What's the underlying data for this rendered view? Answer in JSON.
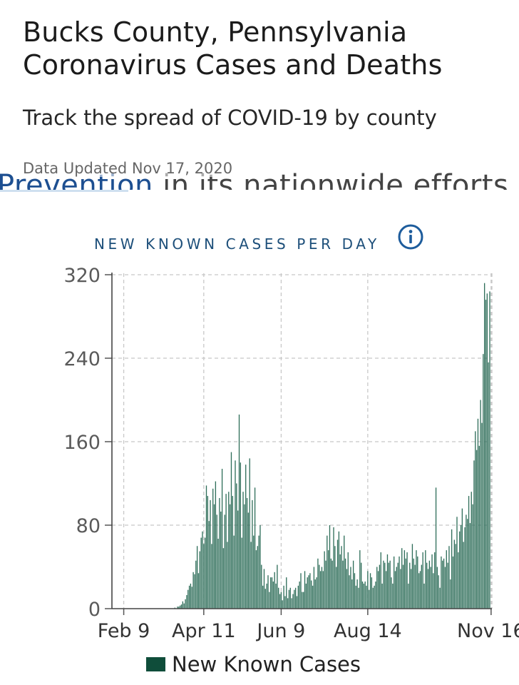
{
  "header": {
    "title_line1": "Bucks County, Pennsylvania",
    "title_line2": "Coronavirus Cases and Deaths",
    "subtitle": "Track the spread of COVID-19 by county",
    "updated": "Data Updated Nov 17, 2020",
    "peek_link": "Prevention",
    "peek_rest": " in its nationwide efforts."
  },
  "colors": {
    "bar": "#2f6e5a",
    "legend": "#0f4d3a",
    "heading": "#1d4f7a",
    "info": "#1d5c9c"
  },
  "icons": {
    "info": "info-circle-icon"
  },
  "chart_data": {
    "type": "bar",
    "title": "NEW KNOWN CASES PER DAY",
    "series_name": "New Known Cases",
    "x_tick_labels": [
      "Feb 9",
      "Apr 11",
      "Jun 9",
      "Aug 14",
      "Nov 16"
    ],
    "x_tick_days": [
      9,
      70,
      129,
      195,
      289
    ],
    "y_ticks": [
      0,
      80,
      160,
      240,
      320
    ],
    "ylim": [
      0,
      320
    ],
    "x_start": "2020-02-01",
    "x_end": "2020-11-17",
    "values": [
      0,
      0,
      0,
      0,
      0,
      0,
      0,
      0,
      0,
      0,
      0,
      0,
      0,
      0,
      0,
      0,
      0,
      0,
      0,
      0,
      0,
      0,
      0,
      0,
      0,
      0,
      0,
      0,
      0,
      0,
      0,
      0,
      0,
      0,
      0,
      0,
      0,
      0,
      0,
      0,
      0,
      0,
      0,
      0,
      0,
      0,
      0,
      0,
      1,
      0,
      2,
      2,
      3,
      4,
      7,
      5,
      9,
      13,
      18,
      22,
      24,
      21,
      35,
      33,
      46,
      60,
      34,
      55,
      68,
      74,
      62,
      68,
      118,
      108,
      84,
      104,
      62,
      115,
      100,
      122,
      90,
      67,
      106,
      93,
      134,
      58,
      90,
      110,
      64,
      112,
      100,
      150,
      108,
      70,
      142,
      120,
      94,
      186,
      140,
      68,
      112,
      100,
      138,
      106,
      92,
      144,
      64,
      104,
      70,
      116,
      56,
      60,
      70,
      80,
      42,
      22,
      38,
      19,
      24,
      32,
      16,
      30,
      30,
      26,
      35,
      24,
      42,
      20,
      14,
      16,
      8,
      22,
      12,
      30,
      10,
      18,
      20,
      10,
      14,
      18,
      20,
      12,
      22,
      26,
      34,
      16,
      16,
      36,
      24,
      30,
      32,
      34,
      27,
      22,
      40,
      28,
      30,
      48,
      42,
      36,
      40,
      36,
      55,
      46,
      70,
      56,
      80,
      48,
      46,
      78,
      60,
      40,
      66,
      74,
      52,
      60,
      46,
      70,
      48,
      38,
      54,
      32,
      40,
      28,
      46,
      34,
      22,
      28,
      20,
      56,
      44,
      26,
      24,
      26,
      22,
      36,
      18,
      34,
      30,
      20,
      22,
      26,
      40,
      36,
      42,
      54,
      24,
      46,
      44,
      36,
      52,
      44,
      46,
      30,
      24,
      50,
      36,
      40,
      44,
      50,
      38,
      58,
      42,
      56,
      48,
      54,
      24,
      44,
      38,
      62,
      48,
      42,
      56,
      50,
      34,
      36,
      42,
      54,
      24,
      56,
      44,
      38,
      46,
      40,
      52,
      34,
      54,
      116,
      40,
      32,
      20,
      50,
      46,
      48,
      40,
      56,
      44,
      60,
      28,
      76,
      50,
      66,
      62,
      88,
      54,
      74,
      80,
      96,
      64,
      78,
      90,
      86,
      108,
      82,
      112,
      100,
      142,
      170,
      152,
      182,
      156,
      200,
      178,
      244,
      312,
      296,
      302,
      236,
      304
    ]
  }
}
